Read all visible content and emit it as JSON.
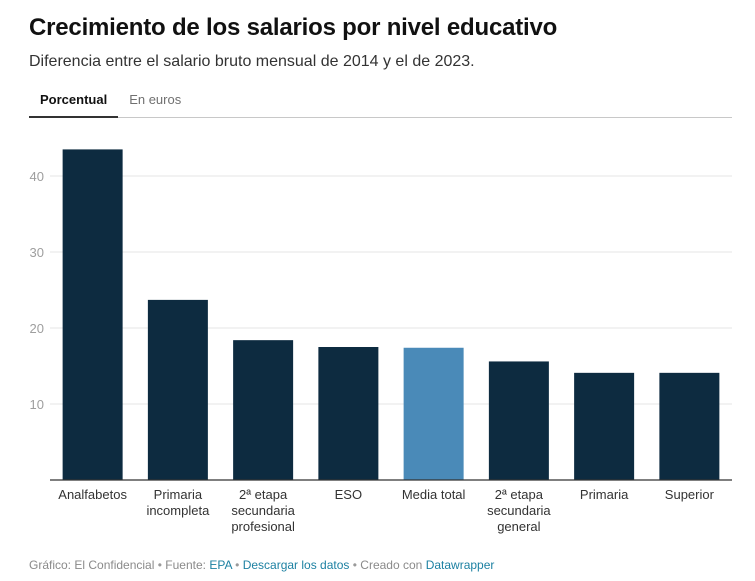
{
  "header": {
    "title": "Crecimiento de los salarios por nivel educativo",
    "subtitle": "Diferencia entre el salario bruto mensual de 2014 y el de 2023."
  },
  "tabs": [
    {
      "label": "Porcentual",
      "active": true
    },
    {
      "label": "En euros",
      "active": false
    }
  ],
  "chart_data": {
    "type": "bar",
    "categories": [
      [
        "Analfabetos"
      ],
      [
        "Primaria",
        "incompleta"
      ],
      [
        "2ª etapa",
        "secundaria",
        "profesional"
      ],
      [
        "ESO"
      ],
      [
        "Media total"
      ],
      [
        "2ª etapa",
        "secundaria",
        "general"
      ],
      [
        "Primaria"
      ],
      [
        "Superior"
      ]
    ],
    "values": [
      43.5,
      23.7,
      18.4,
      17.5,
      17.4,
      15.6,
      14.1,
      14.1
    ],
    "highlight_index": 4,
    "colors": {
      "bar": "#0d2b40",
      "highlight": "#4a8ab8",
      "grid": "#e6e6e6",
      "axis": "#333333",
      "tick": "#9e9e9e"
    },
    "yticks": [
      10,
      20,
      30,
      40
    ],
    "ylim": [
      0,
      45
    ],
    "grid": true
  },
  "footer": {
    "grafico": "Gráfico: El Confidencial",
    "fuente_prefix": "Fuente:",
    "fuente_link": "EPA",
    "descargar": "Descargar los datos",
    "creado_prefix": "Creado con",
    "creado_link": "Datawrapper",
    "separator": "•"
  }
}
